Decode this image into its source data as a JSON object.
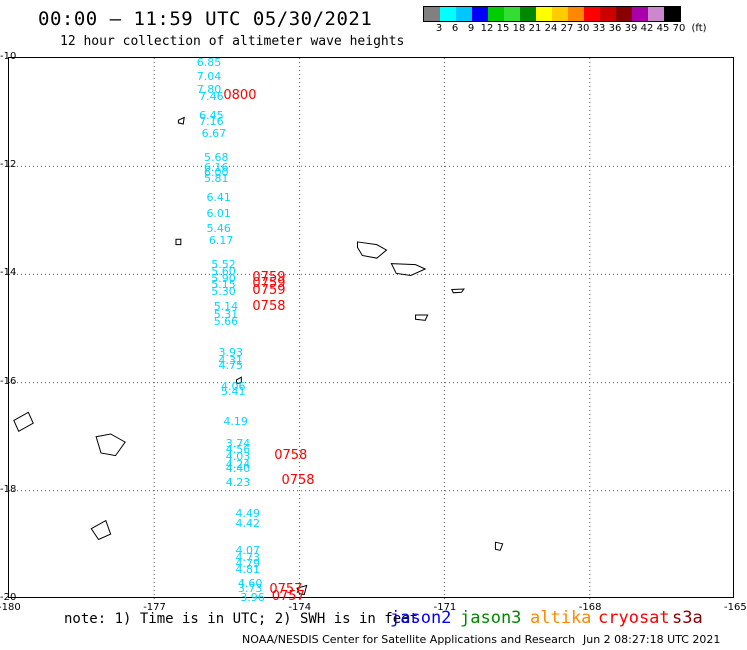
{
  "header": {
    "title": "00:00 – 11:59 UTC 05/30/2021",
    "subtitle": "12 hour collection of altimeter wave heights"
  },
  "colorbar": {
    "colors": [
      "#808080",
      "#00ffff",
      "#00c8ff",
      "#0000ff",
      "#00cc00",
      "#33dd33",
      "#008800",
      "#ffff00",
      "#ffcc00",
      "#ff8800",
      "#ff0000",
      "#cc0000",
      "#880000",
      "#aa00aa",
      "#cc88cc",
      "#000000"
    ],
    "labels": [
      "3",
      "6",
      "9",
      "12",
      "15",
      "18",
      "21",
      "24",
      "27",
      "30",
      "33",
      "36",
      "39",
      "42",
      "45",
      "70"
    ],
    "unit": "(ft)"
  },
  "map": {
    "lon_ticks": [
      "-180",
      "-177",
      "-174",
      "-171",
      "-168",
      "-165"
    ],
    "lat_ticks": [
      "-10",
      "-12",
      "-14",
      "-16",
      "-18",
      "-20"
    ],
    "extent": {
      "lon": [
        -180,
        -165
      ],
      "lat": [
        -20,
        -10
      ]
    }
  },
  "observations": [
    {
      "v": "6.85",
      "lon": -176.1,
      "lat": -10.1
    },
    {
      "v": "7.04",
      "lon": -176.1,
      "lat": -10.35
    },
    {
      "v": "7.80",
      "lon": -176.1,
      "lat": -10.6
    },
    {
      "v": "7.46",
      "lon": -176.05,
      "lat": -10.72
    },
    {
      "v": "6.45",
      "lon": -176.05,
      "lat": -11.08
    },
    {
      "v": "7.16",
      "lon": -176.05,
      "lat": -11.18
    },
    {
      "v": "6.67",
      "lon": -176.0,
      "lat": -11.4
    },
    {
      "v": "5.68",
      "lon": -175.95,
      "lat": -11.85
    },
    {
      "v": "6.16",
      "lon": -175.95,
      "lat": -12.03
    },
    {
      "v": "6.00",
      "lon": -175.95,
      "lat": -12.13
    },
    {
      "v": "5.81",
      "lon": -175.95,
      "lat": -12.23
    },
    {
      "v": "6.41",
      "lon": -175.9,
      "lat": -12.59
    },
    {
      "v": "6.01",
      "lon": -175.9,
      "lat": -12.88
    },
    {
      "v": "5.46",
      "lon": -175.9,
      "lat": -13.17
    },
    {
      "v": "6.17",
      "lon": -175.85,
      "lat": -13.38
    },
    {
      "v": "5.52",
      "lon": -175.8,
      "lat": -13.82
    },
    {
      "v": "5.60",
      "lon": -175.8,
      "lat": -13.96
    },
    {
      "v": "5.90",
      "lon": -175.8,
      "lat": -14.08
    },
    {
      "v": "5.15",
      "lon": -175.8,
      "lat": -14.2
    },
    {
      "v": "5.30",
      "lon": -175.8,
      "lat": -14.33
    },
    {
      "v": "5.14",
      "lon": -175.75,
      "lat": -14.6
    },
    {
      "v": "5.31",
      "lon": -175.75,
      "lat": -14.75
    },
    {
      "v": "5.66",
      "lon": -175.75,
      "lat": -14.88
    },
    {
      "v": "3.93",
      "lon": -175.65,
      "lat": -15.46
    },
    {
      "v": "4.31",
      "lon": -175.65,
      "lat": -15.6
    },
    {
      "v": "4.75",
      "lon": -175.65,
      "lat": -15.7
    },
    {
      "v": "4.06",
      "lon": -175.6,
      "lat": -16.08
    },
    {
      "v": "5.41",
      "lon": -175.6,
      "lat": -16.18
    },
    {
      "v": "4.19",
      "lon": -175.55,
      "lat": -16.72
    },
    {
      "v": "3.74",
      "lon": -175.5,
      "lat": -17.14
    },
    {
      "v": "4.56",
      "lon": -175.5,
      "lat": -17.24
    },
    {
      "v": "4.03",
      "lon": -175.5,
      "lat": -17.38
    },
    {
      "v": "4.24",
      "lon": -175.5,
      "lat": -17.52
    },
    {
      "v": "4.40",
      "lon": -175.5,
      "lat": -17.6
    },
    {
      "v": "4.23",
      "lon": -175.5,
      "lat": -17.86
    },
    {
      "v": "4.49",
      "lon": -175.3,
      "lat": -18.43
    },
    {
      "v": "4.42",
      "lon": -175.3,
      "lat": -18.62
    },
    {
      "v": "4.07",
      "lon": -175.3,
      "lat": -19.12
    },
    {
      "v": "4.73",
      "lon": -175.3,
      "lat": -19.25
    },
    {
      "v": "4.79",
      "lon": -175.3,
      "lat": -19.35
    },
    {
      "v": "4.81",
      "lon": -175.3,
      "lat": -19.46
    },
    {
      "v": "4.60",
      "lon": -175.25,
      "lat": -19.72
    },
    {
      "v": "3.73",
      "lon": -175.25,
      "lat": -19.82
    },
    {
      "v": "3.96",
      "lon": -175.2,
      "lat": -19.98
    }
  ],
  "time_labels": [
    {
      "v": "0800",
      "lon": -175.55,
      "lat": -10.72
    },
    {
      "v": "0759",
      "lon": -174.95,
      "lat": -14.08
    },
    {
      "v": "0759",
      "lon": -174.95,
      "lat": -14.2
    },
    {
      "v": "0759",
      "lon": -174.95,
      "lat": -14.33
    },
    {
      "v": "0758",
      "lon": -174.95,
      "lat": -14.62
    },
    {
      "v": "0758",
      "lon": -174.5,
      "lat": -17.38
    },
    {
      "v": "0758",
      "lon": -174.35,
      "lat": -17.84
    },
    {
      "v": "0757",
      "lon": -174.6,
      "lat": -19.86
    },
    {
      "v": "0757",
      "lon": -174.55,
      "lat": -19.98
    }
  ],
  "footer": {
    "note": "note: 1) Time is in UTC; 2) SWH is in feet",
    "legend": [
      {
        "name": "jason2",
        "color": "#0000ff"
      },
      {
        "name": "jason3",
        "color": "#008800"
      },
      {
        "name": "altika",
        "color": "#ff8800"
      },
      {
        "name": "cryosat",
        "color": "#ff0000"
      },
      {
        "name": "s3a",
        "color": "#880000"
      }
    ],
    "credit": "NOAA/NESDIS Center for Satellite Applications and Research",
    "time": "Jun  2 08:27:18 UTC 2021"
  }
}
